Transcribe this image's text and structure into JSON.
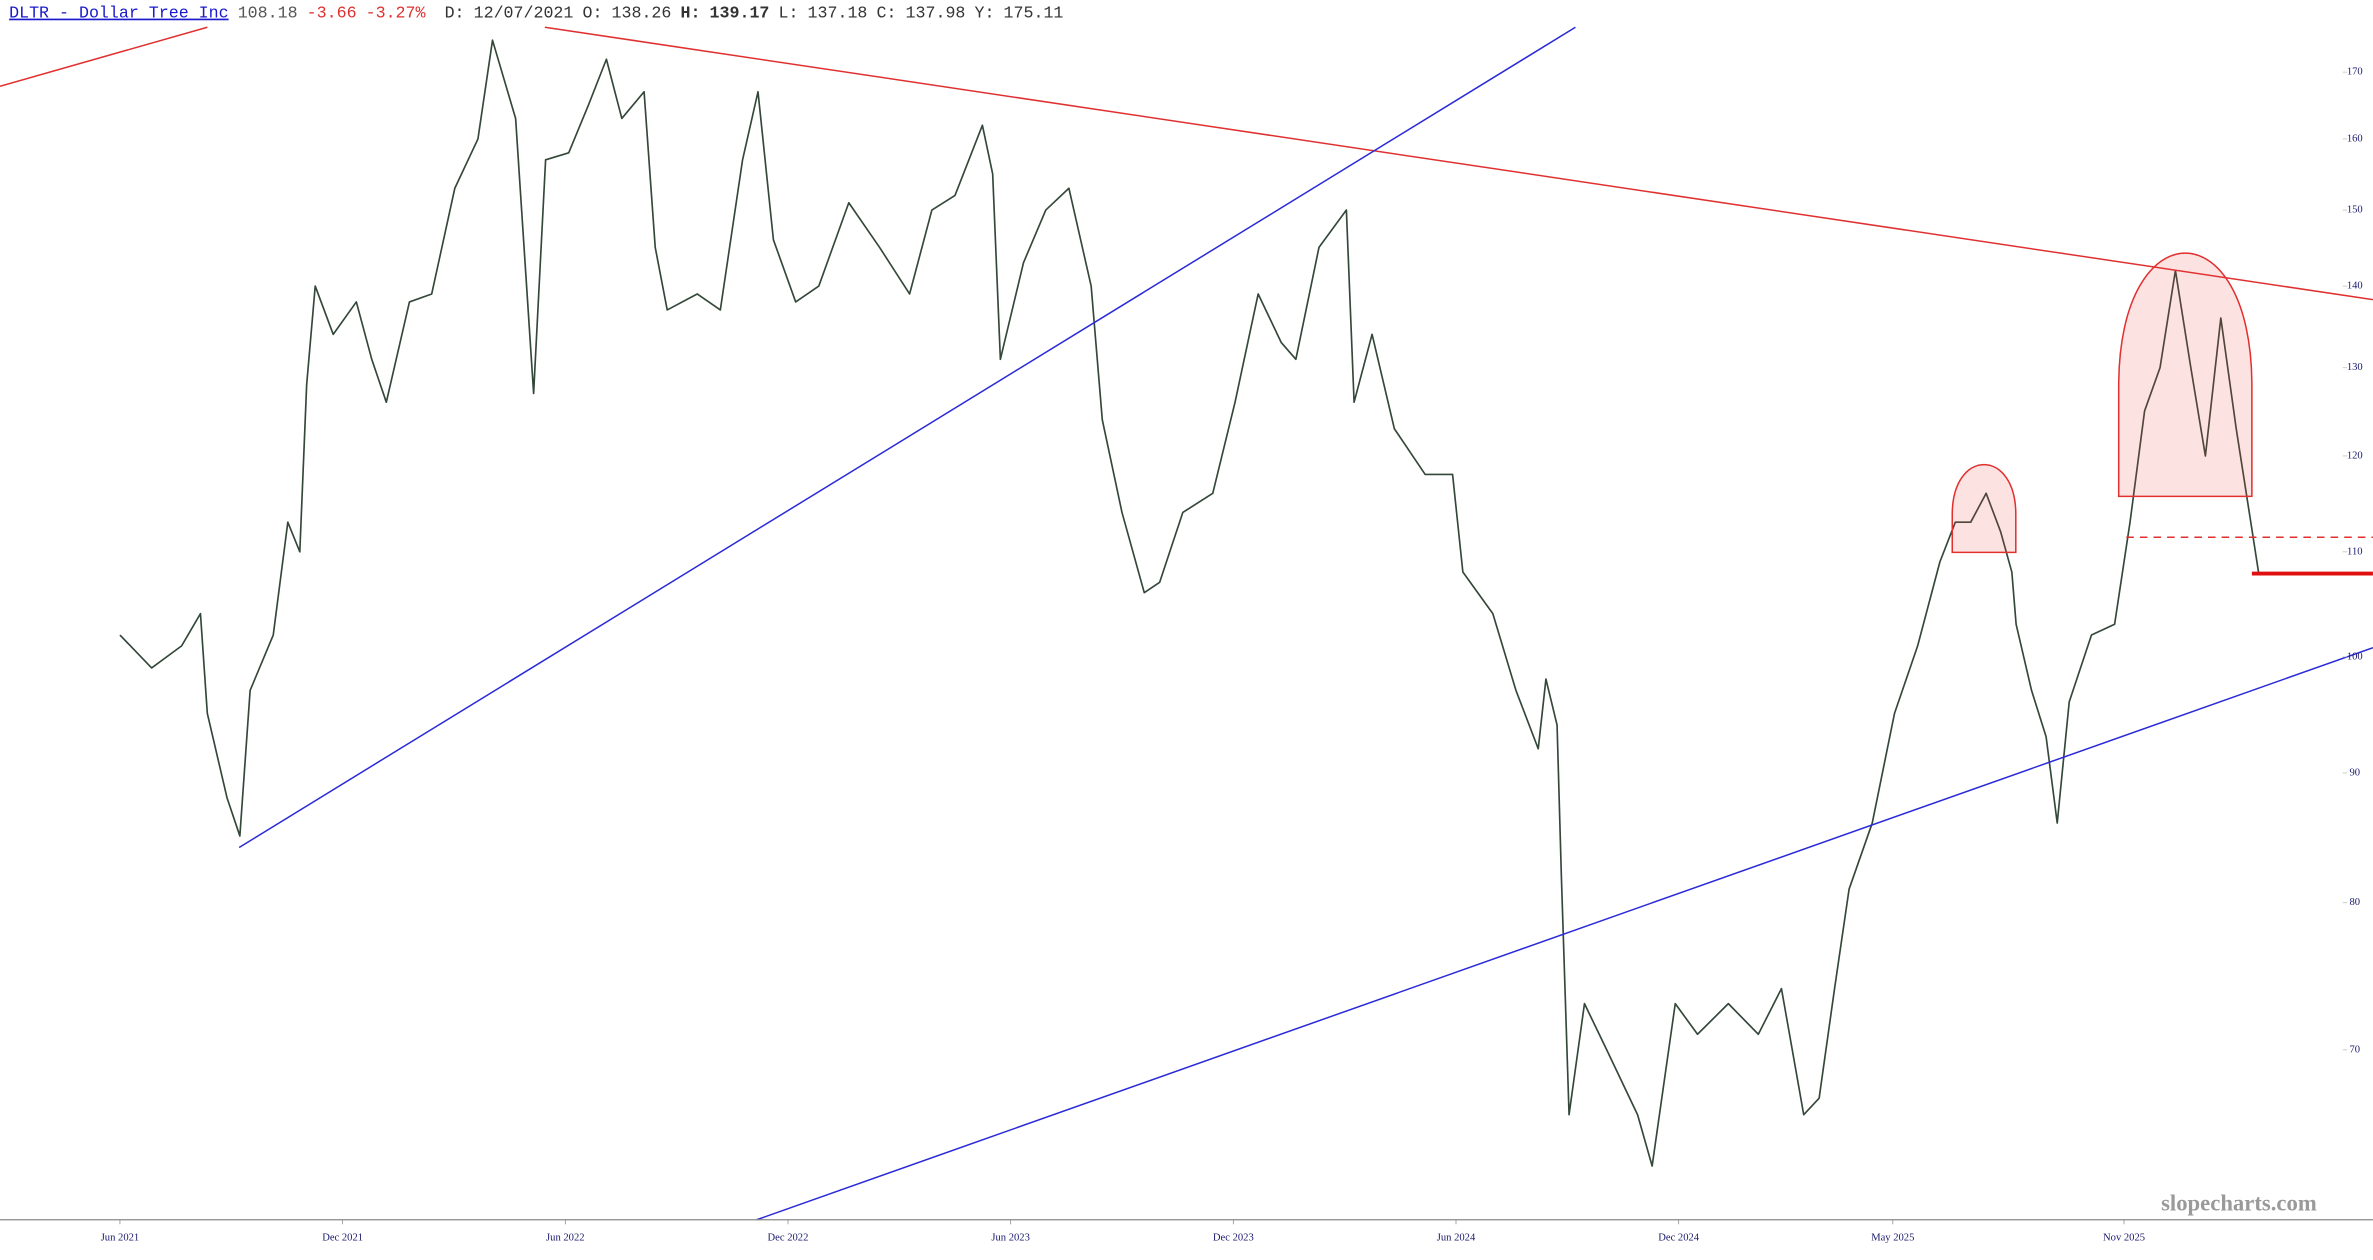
{
  "header": {
    "name": "DLTR - Dollar Tree Inc",
    "last": "108.18",
    "change": "-3.66",
    "change_pct": "-3.27%",
    "fields": [
      {
        "label": "D:",
        "value": "12/07/2021"
      },
      {
        "label": "O:",
        "value": "138.26"
      },
      {
        "label": "H:",
        "value": "139.17"
      },
      {
        "label": "L:",
        "value": "137.18"
      },
      {
        "label": "C:",
        "value": "137.98"
      },
      {
        "label": "Y:",
        "value": "175.11"
      }
    ]
  },
  "watermark": "slopecharts.com",
  "chart_data": {
    "type": "line",
    "log_scale": true,
    "x": [
      14.0,
      17.7,
      21.2,
      23.4,
      24.2,
      26.5,
      28.0,
      29.2,
      31.9,
      33.6,
      35.0,
      35.8,
      36.8,
      38.9,
      41.6,
      43.4,
      45.1,
      47.8,
      50.4,
      53.1,
      55.8,
      57.5,
      60.2,
      62.3,
      63.7,
      66.4,
      68.7,
      70.8,
      72.6,
      75.2,
      76.5,
      77.9,
      81.4,
      84.1,
      86.7,
      88.5,
      90.3,
      92.9,
      95.6,
      99.1,
      102.7,
      106.2,
      108.8,
      111.5,
      114.7,
      115.9,
      116.8,
      119.5,
      122.1,
      124.8,
      127.4,
      128.7,
      131.0,
      133.6,
      135.4,
      138.1,
      141.6,
      144.2,
      146.9,
      149.6,
      151.3,
      154.0,
      157.2,
      158.1,
      160.2,
      162.8,
      166.4,
      169.6,
      170.8,
      174.3,
      177.0,
      179.6,
      180.5,
      181.8,
      182.3,
      183.2,
      185.0,
      187.6,
      191.2,
      192.9,
      195.6,
      198.2,
      201.8,
      205.3,
      208.0,
      210.6,
      212.4,
      214.2,
      215.9,
      218.6,
      221.2,
      223.9,
      226.5,
      228.3,
      230.1,
      231.9,
      233.6,
      234.9,
      235.4,
      237.2,
      238.9,
      240.2,
      241.6,
      244.2,
      246.9,
      248.7,
      250.4,
      252.2,
      254.0,
      255.8,
      257.5,
      259.3,
      261.1,
      262.8,
      263.7
    ],
    "series": [
      {
        "name": "DLTR",
        "color": "#34483a",
        "values": [
          102,
          99,
          101,
          104,
          95,
          88,
          85,
          97,
          102,
          113,
          110,
          128,
          140,
          134,
          138,
          131,
          126,
          138,
          139,
          153,
          160,
          175,
          163,
          127,
          157,
          158,
          165,
          172,
          163,
          167,
          145,
          137,
          139,
          137,
          157,
          167,
          146,
          138,
          140,
          151,
          145,
          139,
          150,
          152,
          162,
          155,
          131,
          143,
          150,
          153,
          140,
          124,
          114,
          106,
          107,
          114,
          116,
          126,
          139,
          133,
          131,
          145,
          150,
          126,
          134,
          123,
          118,
          118,
          108,
          104,
          97,
          92,
          98,
          94,
          82,
          66,
          73,
          70,
          66,
          63,
          73,
          71,
          73,
          71,
          74,
          66,
          67,
          74,
          81,
          86,
          95,
          101,
          109,
          113,
          113,
          116,
          112,
          108,
          103,
          97,
          93,
          86,
          96,
          102,
          103,
          113,
          125,
          130,
          142,
          130,
          120,
          136,
          123,
          113,
          108
        ]
      }
    ],
    "xlim": [
      0,
      273
    ],
    "xticks": [
      {
        "value": 14,
        "label": "Jun 2021"
      },
      {
        "value": 40,
        "label": "Dec 2021"
      },
      {
        "value": 66,
        "label": "Jun 2022"
      },
      {
        "value": 92,
        "label": "Dec 2022"
      },
      {
        "value": 118,
        "label": "Jun 2023"
      },
      {
        "value": 144,
        "label": "Dec 2023"
      },
      {
        "value": 170,
        "label": "Jun 2024"
      },
      {
        "value": 196,
        "label": "Dec 2024"
      },
      {
        "value": 221,
        "label": "May 2025"
      },
      {
        "value": 248,
        "label": "Nov 2025"
      }
    ],
    "ylim": [
      60,
      181.5
    ],
    "yticks": [
      70,
      80,
      90,
      100,
      110,
      120,
      130,
      140,
      150,
      160,
      170
    ]
  }
}
